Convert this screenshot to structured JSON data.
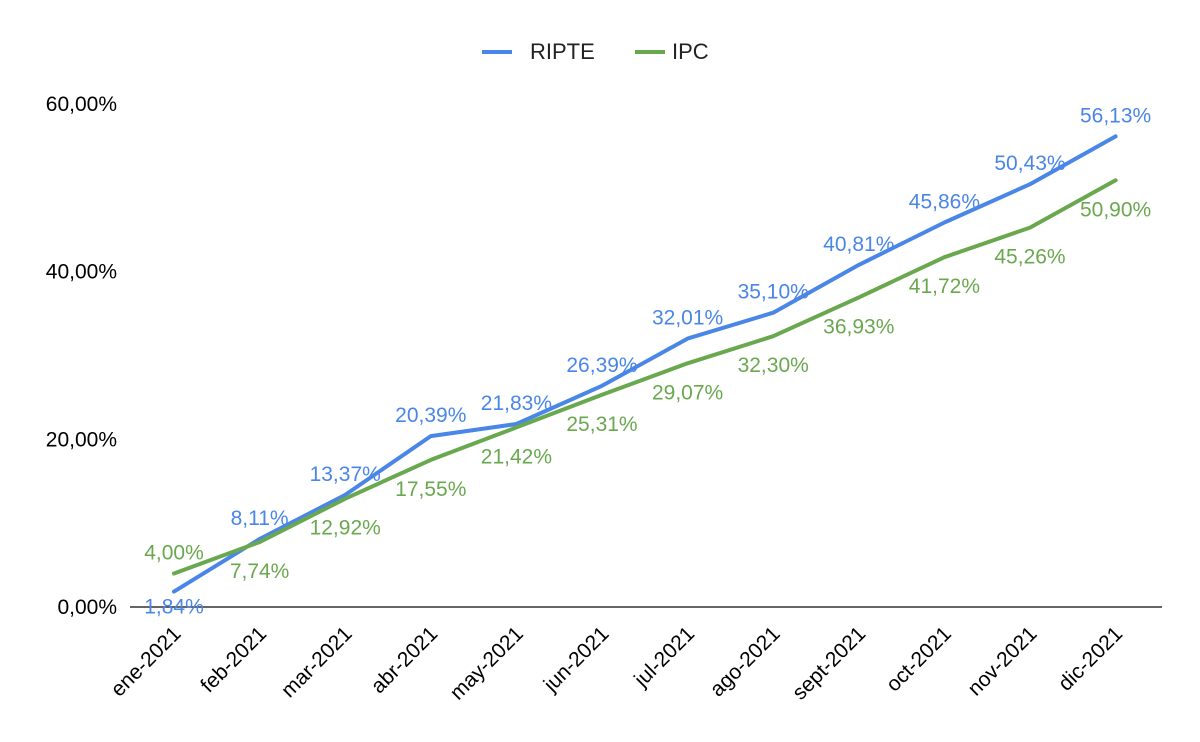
{
  "chart_data": {
    "type": "line",
    "title": "",
    "xlabel": "",
    "ylabel": "",
    "categories": [
      "ene-2021",
      "feb-2021",
      "mar-2021",
      "abr-2021",
      "may-2021",
      "jun-2021",
      "jul-2021",
      "ago-2021",
      "sept-2021",
      "oct-2021",
      "nov-2021",
      "dic-2021"
    ],
    "ylim": [
      0,
      60
    ],
    "yticks": [
      {
        "value": 0,
        "label": "0,00%"
      },
      {
        "value": 20,
        "label": "20,00%"
      },
      {
        "value": 40,
        "label": "40,00%"
      },
      {
        "value": 60,
        "label": "60,00%"
      }
    ],
    "legend_position": "top",
    "series": [
      {
        "name": "RIPTE",
        "color": "#4a86e8",
        "values": [
          1.84,
          8.11,
          13.37,
          20.39,
          21.83,
          26.39,
          32.01,
          35.1,
          40.81,
          45.86,
          50.43,
          56.13
        ],
        "labels": [
          "1,84%",
          "8,11%",
          "13,37%",
          "20,39%",
          "21,83%",
          "26,39%",
          "32,01%",
          "35,10%",
          "40,81%",
          "45,86%",
          "50,43%",
          "56,13%"
        ]
      },
      {
        "name": "IPC",
        "color": "#6aa84f",
        "values": [
          4.0,
          7.74,
          12.92,
          17.55,
          21.42,
          25.31,
          29.07,
          32.3,
          36.93,
          41.72,
          45.26,
          50.9
        ],
        "labels": [
          "4,00%",
          "7,74%",
          "12,92%",
          "17,55%",
          "21,42%",
          "25,31%",
          "29,07%",
          "32,30%",
          "36,93%",
          "41,72%",
          "45,26%",
          "50,90%"
        ]
      }
    ]
  }
}
